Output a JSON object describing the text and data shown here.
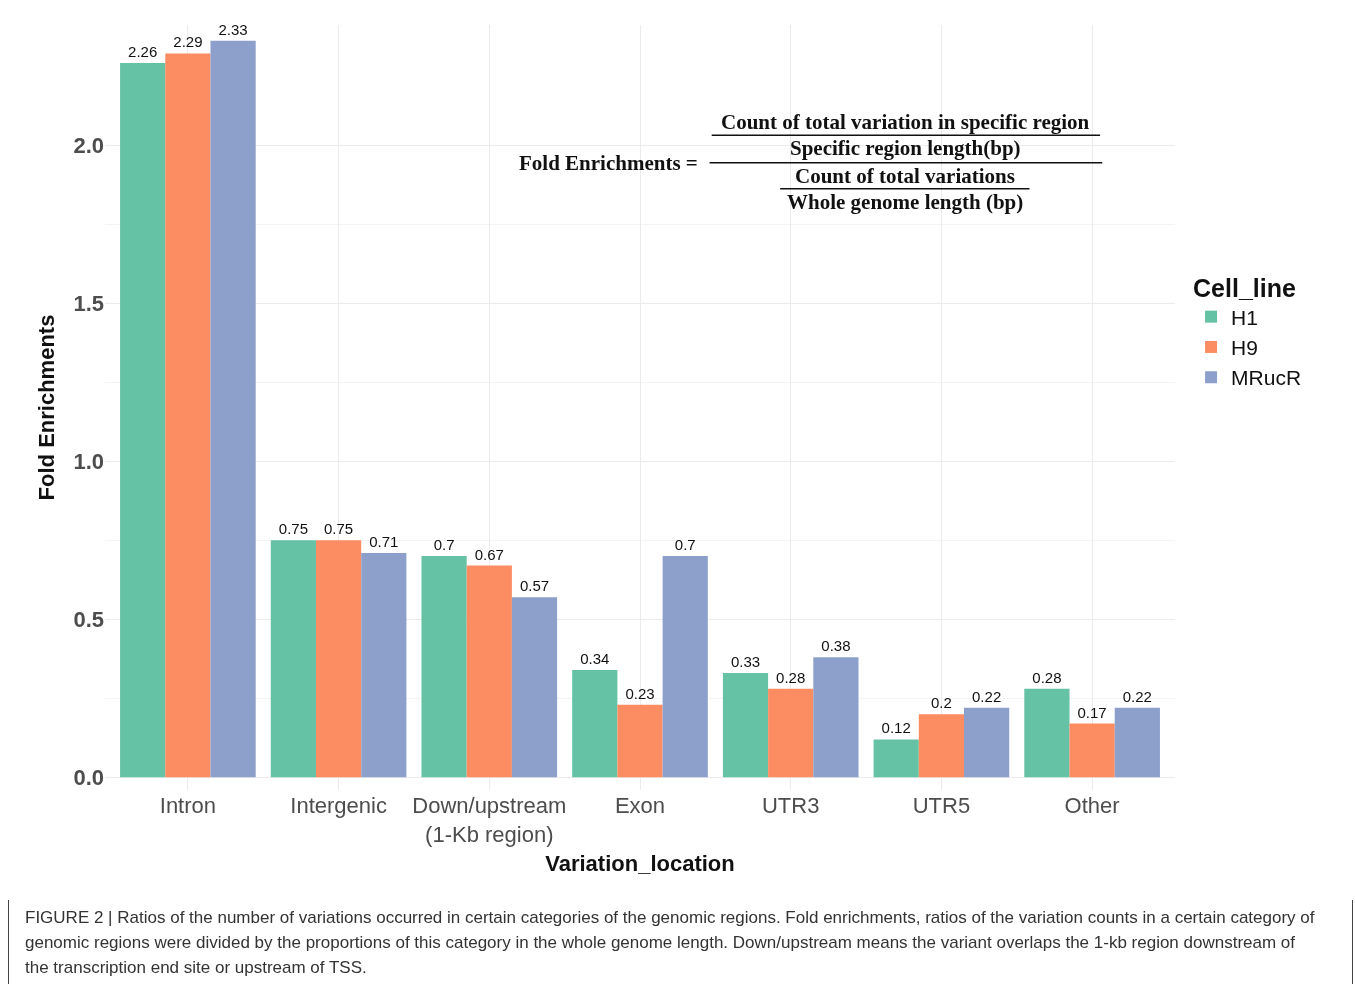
{
  "chart_data": {
    "type": "bar",
    "xlabel": "Variation_location",
    "ylabel": "Fold Enrichments",
    "legend_title": "Cell_line",
    "categories": [
      "Intron",
      "Intergenic",
      "Down/upstream\n(1-Kb region)",
      "Exon",
      "UTR3",
      "UTR5",
      "Other"
    ],
    "series": [
      {
        "name": "H1",
        "color": "#66c2a5",
        "values": [
          2.26,
          0.75,
          0.7,
          0.34,
          0.33,
          0.12,
          0.28
        ]
      },
      {
        "name": "H9",
        "color": "#fc8d62",
        "values": [
          2.29,
          0.75,
          0.67,
          0.23,
          0.28,
          0.2,
          0.17
        ]
      },
      {
        "name": "MRucR",
        "color": "#8da0cb",
        "values": [
          2.33,
          0.71,
          0.57,
          0.7,
          0.38,
          0.22,
          0.22
        ]
      }
    ],
    "ylim": [
      -0.04,
      2.38
    ],
    "yticks": [
      {
        "value": 0,
        "label": "0.0"
      },
      {
        "value": 0.5,
        "label": "0.5"
      },
      {
        "value": 1,
        "label": "1.0"
      },
      {
        "value": 1.5,
        "label": "1.5"
      },
      {
        "value": 2,
        "label": "2.0"
      }
    ],
    "grid": true,
    "legend": "right",
    "data_labels": true,
    "annotations": [
      "Fold Enrichments =",
      "Count of total variation in specific region",
      "Specific region length(bp)",
      "Count of total variations",
      "Whole genome length (bp)",
      "FIGURE 2 | Ratios of the number of variations occurred in certain categories of the genomic regions. Fold enrichments, ratios of the variation counts in a certain category of genomic regions were divided by the proportions of this category in the whole genome length. Down/upstream means the variant overlaps the 1-kb region downstream of the transcription end site or upstream of TSS."
    ]
  }
}
